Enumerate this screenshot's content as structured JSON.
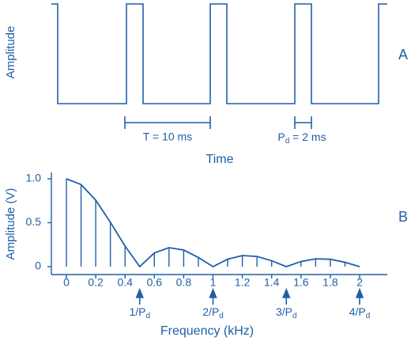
{
  "panel_a": {
    "y_label": "Amplitude",
    "panel_label": "A",
    "period_label": "T = 10 ms",
    "pulse_label": {
      "main": "P",
      "subscript": "d",
      "rest": " = 2 ms"
    },
    "x_label": "Time"
  },
  "chart_data": {
    "type": "stem",
    "panel_label": "B",
    "x_label": "Frequency (kHz)",
    "y_label": "Amplitude (V)",
    "color": "#1f5fa8",
    "x": [
      0,
      0.1,
      0.2,
      0.3,
      0.4,
      0.5,
      0.6,
      0.7,
      0.8,
      0.9,
      1.0,
      1.1,
      1.2,
      1.3,
      1.4,
      1.5,
      1.6,
      1.7,
      1.8,
      1.9,
      2.0
    ],
    "values": [
      1.0,
      0.935,
      0.757,
      0.505,
      0.234,
      0.0,
      0.156,
      0.216,
      0.189,
      0.104,
      0.0,
      0.085,
      0.126,
      0.116,
      0.067,
      0.0,
      0.058,
      0.089,
      0.084,
      0.049,
      0.0
    ],
    "xlim": [
      -0.1,
      2.2
    ],
    "ylim": [
      0,
      1.0
    ],
    "xticks": [
      0,
      0.2,
      0.4,
      0.6,
      0.8,
      1,
      1.2,
      1.4,
      1.6,
      1.8,
      2
    ],
    "yticks": [
      0,
      0.5,
      {
        "value": 1,
        "label": "1.0"
      }
    ],
    "annotations": [
      {
        "x": 0.5,
        "text": "1/P",
        "subscript": "d"
      },
      {
        "x": 1,
        "text": "2/P",
        "subscript": "d"
      },
      {
        "x": 1.5,
        "text": "3/P",
        "subscript": "d"
      },
      {
        "x": 2,
        "text": "4/P",
        "subscript": "d"
      }
    ]
  }
}
